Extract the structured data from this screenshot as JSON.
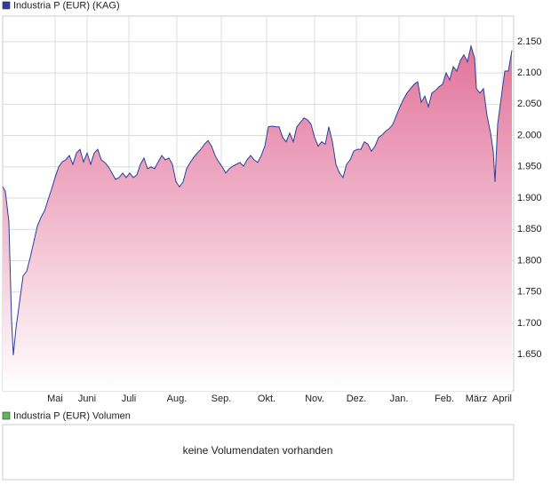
{
  "chart_data": {
    "type": "area",
    "x": [
      0,
      3,
      7,
      10,
      12,
      15,
      19,
      23,
      27,
      31,
      35,
      39,
      43,
      47,
      51,
      55,
      59,
      63,
      67,
      71,
      75,
      79,
      83,
      87,
      91,
      95,
      99,
      103,
      107,
      111,
      115,
      119,
      123,
      127,
      131,
      135,
      139,
      143,
      147,
      151,
      155,
      159,
      163,
      167,
      171,
      175,
      179,
      183,
      187,
      191,
      195,
      199,
      203,
      207,
      211,
      215,
      219,
      223,
      227,
      231,
      235,
      239,
      243,
      247,
      251,
      255,
      259,
      263,
      267,
      271,
      275,
      279,
      283,
      287,
      291,
      295,
      299,
      303,
      307,
      311,
      315,
      319,
      323,
      327,
      331,
      335,
      339,
      343,
      347,
      351,
      355,
      359,
      363,
      367,
      371,
      375,
      379,
      383,
      387,
      391,
      395,
      399,
      403,
      407,
      411,
      415,
      419,
      423,
      427,
      431,
      435,
      439,
      443,
      447,
      451,
      455,
      459,
      463,
      467,
      471,
      475,
      479,
      483,
      487,
      491,
      495,
      499,
      503,
      507,
      511,
      515,
      519,
      523,
      527,
      531,
      533,
      537,
      541,
      545,
      549,
      552,
      554,
      557,
      561,
      565,
      569,
      573
    ],
    "series": [
      {
        "name": "Industria P (EUR) (KAG)",
        "color": "#2a3f9e",
        "fill_color": "#e2739a",
        "values": [
          1918,
          1911,
          1862,
          1705,
          1649,
          1692,
          1734,
          1776,
          1783,
          1805,
          1830,
          1855,
          1869,
          1879,
          1897,
          1914,
          1933,
          1950,
          1958,
          1961,
          1968,
          1954,
          1972,
          1978,
          1958,
          1972,
          1954,
          1972,
          1978,
          1961,
          1957,
          1950,
          1940,
          1930,
          1933,
          1940,
          1933,
          1940,
          1933,
          1937,
          1954,
          1964,
          1947,
          1950,
          1947,
          1958,
          1968,
          1961,
          1964,
          1954,
          1926,
          1918,
          1926,
          1947,
          1957,
          1965,
          1972,
          1978,
          1986,
          1992,
          1983,
          1968,
          1958,
          1950,
          1940,
          1947,
          1951,
          1954,
          1957,
          1951,
          1961,
          1968,
          1961,
          1957,
          1968,
          1983,
          2014,
          2015,
          2014,
          2014,
          1997,
          1990,
          2004,
          1990,
          2014,
          2021,
          2028,
          2025,
          2018,
          1997,
          1983,
          1990,
          1986,
          2014,
          1990,
          1954,
          1940,
          1933,
          1954,
          1961,
          1975,
          1978,
          1978,
          1990,
          1986,
          1975,
          1983,
          1997,
          2001,
          2007,
          2011,
          2018,
          2032,
          2046,
          2058,
          2068,
          2075,
          2082,
          2086,
          2053,
          2063,
          2046,
          2068,
          2072,
          2078,
          2082,
          2100,
          2089,
          2110,
          2103,
          2120,
          2129,
          2118,
          2143,
          2124,
          2075,
          2068,
          2075,
          2032,
          2004,
          1975,
          1926,
          2018,
          2061,
          2103,
          2103,
          2136
        ]
      }
    ],
    "xlim": [
      0,
      575
    ],
    "xticks": [
      {
        "value": 59,
        "label": "Mai"
      },
      {
        "value": 95,
        "label": "Juni"
      },
      {
        "value": 142,
        "label": "Juli"
      },
      {
        "value": 196,
        "label": "Aug."
      },
      {
        "value": 246,
        "label": "Sep."
      },
      {
        "value": 297,
        "label": "Okt."
      },
      {
        "value": 351,
        "label": "Nov."
      },
      {
        "value": 398,
        "label": "Dez."
      },
      {
        "value": 446,
        "label": "Jan."
      },
      {
        "value": 497,
        "label": "Feb."
      },
      {
        "value": 533,
        "label": "März"
      },
      {
        "value": 562,
        "label": "April"
      }
    ],
    "ylim": [
      1592,
      2191
    ],
    "yticks": [
      {
        "value": 1650,
        "label": "1.650"
      },
      {
        "value": 1700,
        "label": "1.700"
      },
      {
        "value": 1750,
        "label": "1.750"
      },
      {
        "value": 1800,
        "label": "1.800"
      },
      {
        "value": 1850,
        "label": "1.850"
      },
      {
        "value": 1900,
        "label": "1.900"
      },
      {
        "value": 1950,
        "label": "1.950"
      },
      {
        "value": 2000,
        "label": "2.000"
      },
      {
        "value": 2050,
        "label": "2.050"
      },
      {
        "value": 2100,
        "label": "2.100"
      },
      {
        "value": 2150,
        "label": "2.150"
      }
    ],
    "grid": true
  },
  "volume_chart": {
    "title": "Industria P (EUR) Volumen",
    "color": "#5cb85c",
    "message": "keine Volumendaten vorhanden"
  }
}
